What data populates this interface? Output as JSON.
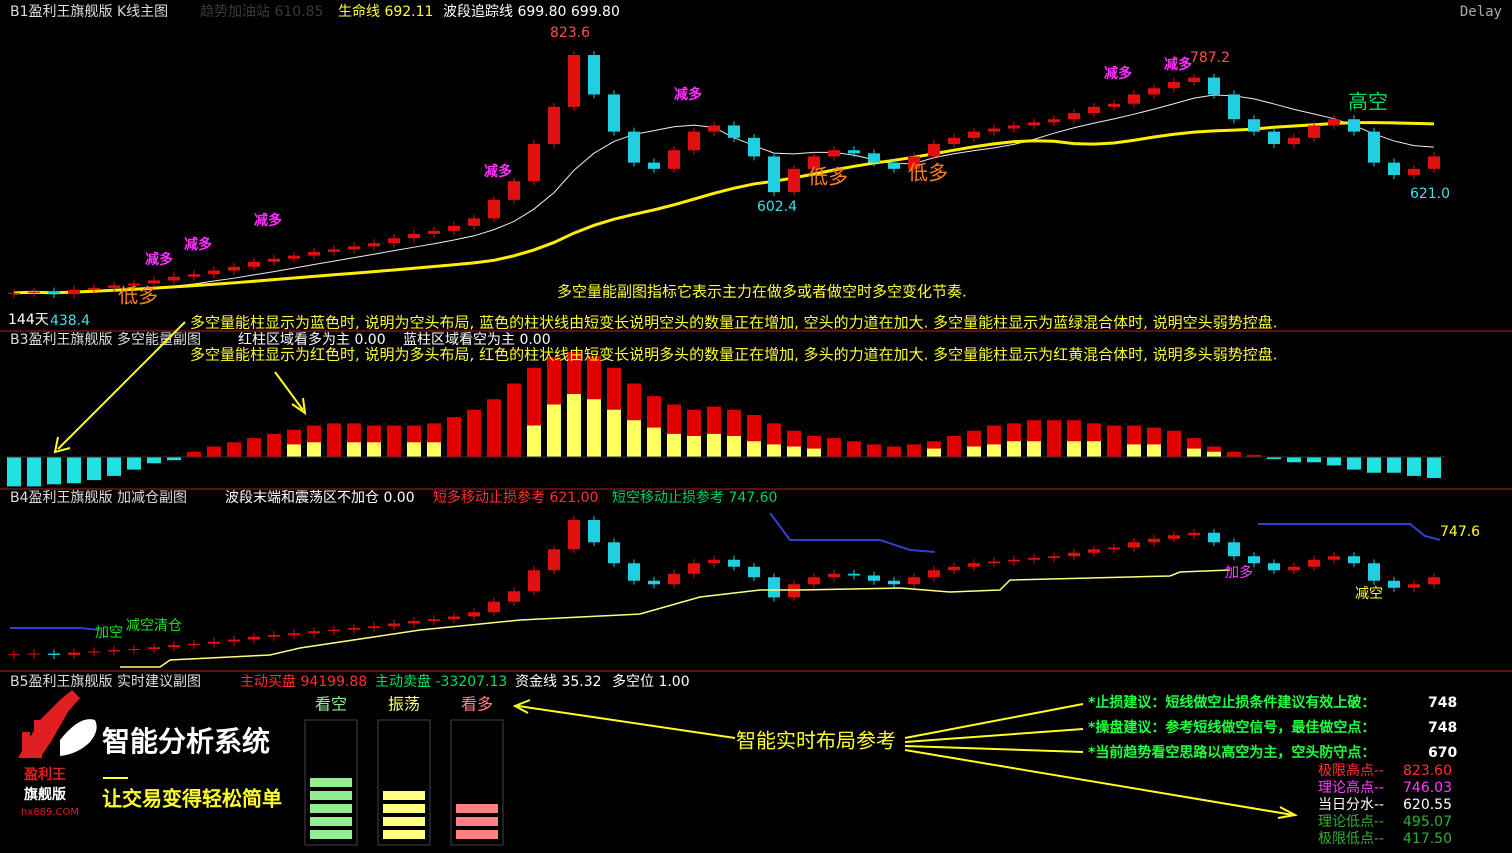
{
  "panels": {
    "main": {
      "title": "B1盈利王旗舰版 K线主图",
      "faint": "趋势加油站 610.85",
      "indicators": [
        "生命线 692.11",
        "波段追踪线 699.80 699.80"
      ],
      "status": "Delay",
      "price_labels": [
        "823.6",
        "787.2",
        "602.4",
        "621.0",
        "438.4"
      ],
      "days": "144天",
      "signals": {
        "reduce_long": "减多",
        "low_long": "低多",
        "high_short": "高空"
      },
      "notes": [
        "多空量能副图指标它表示主力在做多或者做空时多空变化节奏.",
        "多空量能柱显示为蓝色时, 说明为空头布局, 蓝色的柱状线由短变长说明空头的数量正在增加, 空头的力道在加大. 多空量能柱显示为蓝绿混合体时, 说明空头弱势控盘.",
        "多空量能柱显示为红色时, 说明为多头布局, 红色的柱状线由短变长说明多头的数量正在增加, 多头的力道在加大. 多空量能柱显示为红黄混合体时, 说明多头弱势控盘."
      ]
    },
    "energy": {
      "title": "B3盈利王旗舰版 多空能量副图",
      "indicators": [
        "红柱区域看多为主 0.00",
        "蓝柱区域看空为主 0.00"
      ]
    },
    "position": {
      "title": "B4盈利王旗舰版 加减仓副图",
      "indicators": [
        "波段末端和震荡区不加仓 0.00",
        "短多移动止损参考 621.00",
        "短空移动止损参考 747.60"
      ],
      "level_label": "747.6",
      "signals": [
        "加空",
        "减空清仓",
        "加多",
        "减空"
      ]
    },
    "advice": {
      "title": "B5盈利王旗舰版 实时建议副图",
      "indicators": [
        "主动买盘 94199.88",
        "主动卖盘 -33207.13",
        "资金线 35.32",
        "多空位 1.00"
      ],
      "brand": {
        "name": "盈利王",
        "edition": "旗舰版",
        "site": "hx889.COM",
        "system": "智能分析系统",
        "slogan": "让交易变得轻松简单"
      },
      "gauges": [
        {
          "label": "看空",
          "level": 5,
          "color": "#90ee90"
        },
        {
          "label": "振荡",
          "level": 4,
          "color": "#ffff80"
        },
        {
          "label": "看多",
          "level": 3,
          "color": "#ff8080"
        }
      ],
      "callout": "智能实时布局参考",
      "suggestions": [
        {
          "text": "*止损建议：短线做空止损条件建议有效上破：",
          "value": "748"
        },
        {
          "text": "*操盘建议：参考短线做空信号，最佳做空点：",
          "value": "748"
        },
        {
          "text": "*当前趋势看空思路以高空为主，空头防守点：",
          "value": "670"
        }
      ],
      "levels": [
        {
          "label": "极限高点--",
          "value": "823.60"
        },
        {
          "label": "理论高点--",
          "value": "746.03"
        },
        {
          "label": "当日分水--",
          "value": "620.55"
        },
        {
          "label": "理论低点--",
          "value": "495.07"
        },
        {
          "label": "极限低点--",
          "value": "417.50"
        }
      ]
    }
  },
  "kline": {
    "type": "candlestick",
    "up_color": "#e01010",
    "down_color": "#20d0e0",
    "closes": [
      440,
      442,
      438,
      445,
      448,
      452,
      455,
      460,
      466,
      470,
      476,
      482,
      490,
      495,
      500,
      506,
      510,
      515,
      520,
      528,
      535,
      540,
      548,
      560,
      590,
      620,
      680,
      740,
      823.6,
      760,
      700,
      650,
      640,
      670,
      700,
      710,
      690,
      660,
      602.4,
      640,
      660,
      670,
      665,
      650,
      640,
      660,
      680,
      690,
      700,
      705,
      710,
      715,
      720,
      730,
      740,
      745,
      760,
      770,
      780,
      787.2,
      760,
      720,
      700,
      680,
      690,
      710,
      720,
      700,
      650,
      630,
      640,
      660
    ]
  },
  "energy_bars": {
    "type": "bar",
    "series": [
      {
        "color": "#e00000",
        "negative_color": "#20e0e0",
        "values": [
          -28,
          -28,
          -26,
          -25,
          -22,
          -18,
          -12,
          -6,
          -3,
          5,
          10,
          14,
          18,
          22,
          26,
          30,
          32,
          32,
          30,
          30,
          30,
          32,
          38,
          45,
          55,
          70,
          85,
          95,
          100,
          96,
          85,
          70,
          58,
          50,
          45,
          48,
          45,
          40,
          32,
          25,
          20,
          18,
          15,
          12,
          10,
          12,
          15,
          20,
          25,
          30,
          32,
          35,
          35,
          35,
          32,
          30,
          30,
          28,
          25,
          18,
          10,
          5,
          2,
          -2,
          -5,
          -5,
          -8,
          -12,
          -15,
          -15,
          -18,
          -20
        ]
      },
      {
        "color": "#ffff60",
        "values": [
          0,
          0,
          0,
          0,
          0,
          0,
          0,
          0,
          0,
          0,
          0,
          0,
          0,
          0,
          12,
          14,
          0,
          14,
          14,
          0,
          14,
          14,
          0,
          0,
          0,
          0,
          30,
          50,
          60,
          55,
          45,
          35,
          28,
          22,
          20,
          22,
          20,
          15,
          12,
          10,
          8,
          0,
          0,
          0,
          0,
          0,
          8,
          0,
          10,
          12,
          15,
          15,
          0,
          15,
          15,
          0,
          12,
          12,
          0,
          8,
          5,
          0,
          0,
          0,
          0,
          0,
          0,
          0,
          0,
          0,
          0,
          0
        ]
      }
    ]
  }
}
